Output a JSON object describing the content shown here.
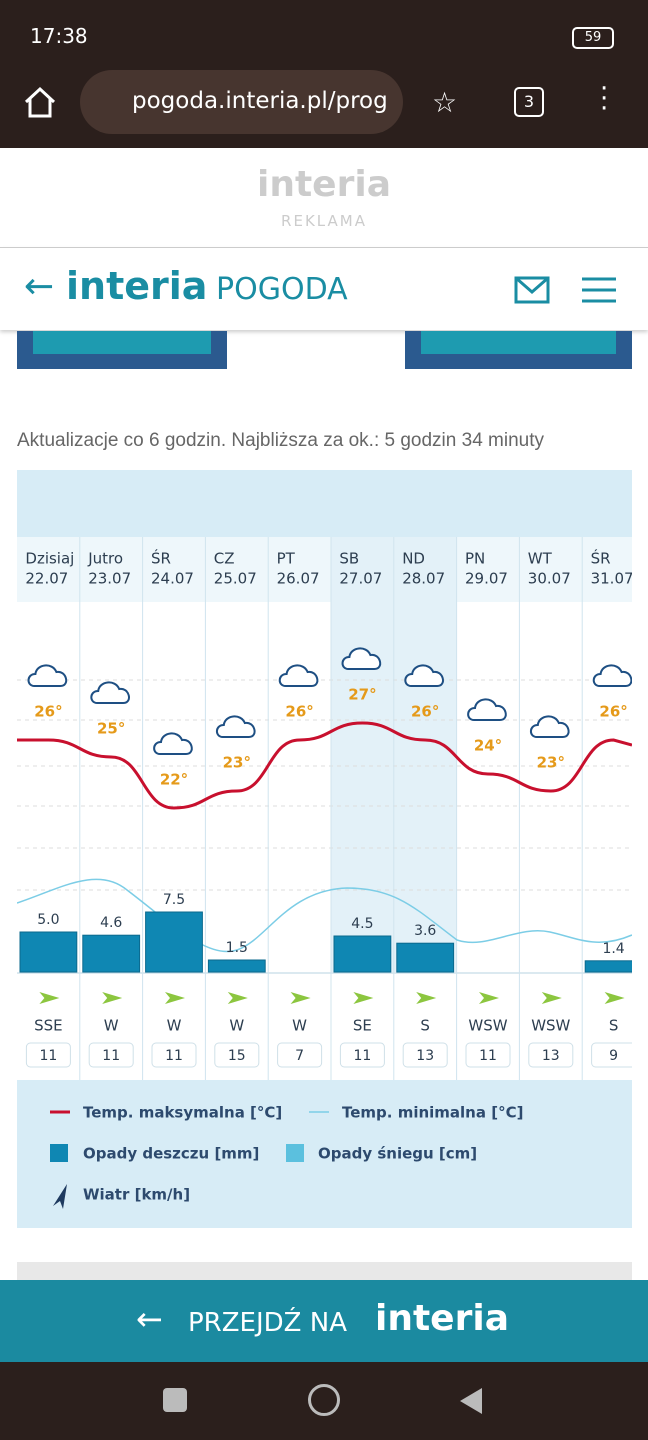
{
  "status_bar": {
    "time": "17:38",
    "battery": "59"
  },
  "browser": {
    "url": "pogoda.interia.pl/prog",
    "tabs": "3"
  },
  "ad": {
    "logo": "interia",
    "label": "REKLAMA"
  },
  "header": {
    "logo": "interia",
    "section": "POGODA"
  },
  "update_note": "Aktualizacje co 6 godzin. Najbliższa za ok.: 5 godzin 34 minuty",
  "forecast": {
    "days": [
      {
        "day": "Dzisiaj",
        "date": "22.07",
        "temp_max": 26,
        "temp_label": "26°",
        "precip": 5.0,
        "precip_label": "5.0",
        "wind_dir": "SSE",
        "wind_speed": "11"
      },
      {
        "day": "Jutro",
        "date": "23.07",
        "temp_max": 25,
        "temp_label": "25°",
        "precip": 4.6,
        "precip_label": "4.6",
        "wind_dir": "W",
        "wind_speed": "11"
      },
      {
        "day": "ŚR",
        "date": "24.07",
        "temp_max": 22,
        "temp_label": "22°",
        "precip": 7.5,
        "precip_label": "7.5",
        "wind_dir": "W",
        "wind_speed": "11"
      },
      {
        "day": "CZ",
        "date": "25.07",
        "temp_max": 23,
        "temp_label": "23°",
        "precip": 1.5,
        "precip_label": "1.5",
        "wind_dir": "W",
        "wind_speed": "15"
      },
      {
        "day": "PT",
        "date": "26.07",
        "temp_max": 26,
        "temp_label": "26°",
        "precip": null,
        "precip_label": null,
        "wind_dir": "W",
        "wind_speed": "7"
      },
      {
        "day": "SB",
        "date": "27.07",
        "temp_max": 27,
        "temp_label": "27°",
        "precip": 4.5,
        "precip_label": "4.5",
        "wind_dir": "SE",
        "wind_speed": "11"
      },
      {
        "day": "ND",
        "date": "28.07",
        "temp_max": 26,
        "temp_label": "26°",
        "precip": 3.6,
        "precip_label": "3.6",
        "wind_dir": "S",
        "wind_speed": "13"
      },
      {
        "day": "PN",
        "date": "29.07",
        "temp_max": 24,
        "temp_label": "24°",
        "precip": null,
        "precip_label": null,
        "wind_dir": "WSW",
        "wind_speed": "11"
      },
      {
        "day": "WT",
        "date": "30.07",
        "temp_max": 23,
        "temp_label": "23°",
        "precip": null,
        "precip_label": null,
        "wind_dir": "WSW",
        "wind_speed": "13"
      },
      {
        "day": "ŚR",
        "date": "31.07",
        "temp_max": 26,
        "temp_label": "26°",
        "precip": 1.4,
        "precip_label": "1.4",
        "wind_dir": "S",
        "wind_speed": "9"
      }
    ],
    "legend": {
      "temp_max": "Temp. maksymalna [°C]",
      "temp_min": "Temp. minimalna [°C]",
      "rain": "Opady deszczu [mm]",
      "snow": "Opady śniegu [cm]",
      "wind": "Wiatr [km/h]"
    }
  },
  "banner": {
    "text": "PRZEJDŹ NA",
    "logo": "interia"
  }
}
